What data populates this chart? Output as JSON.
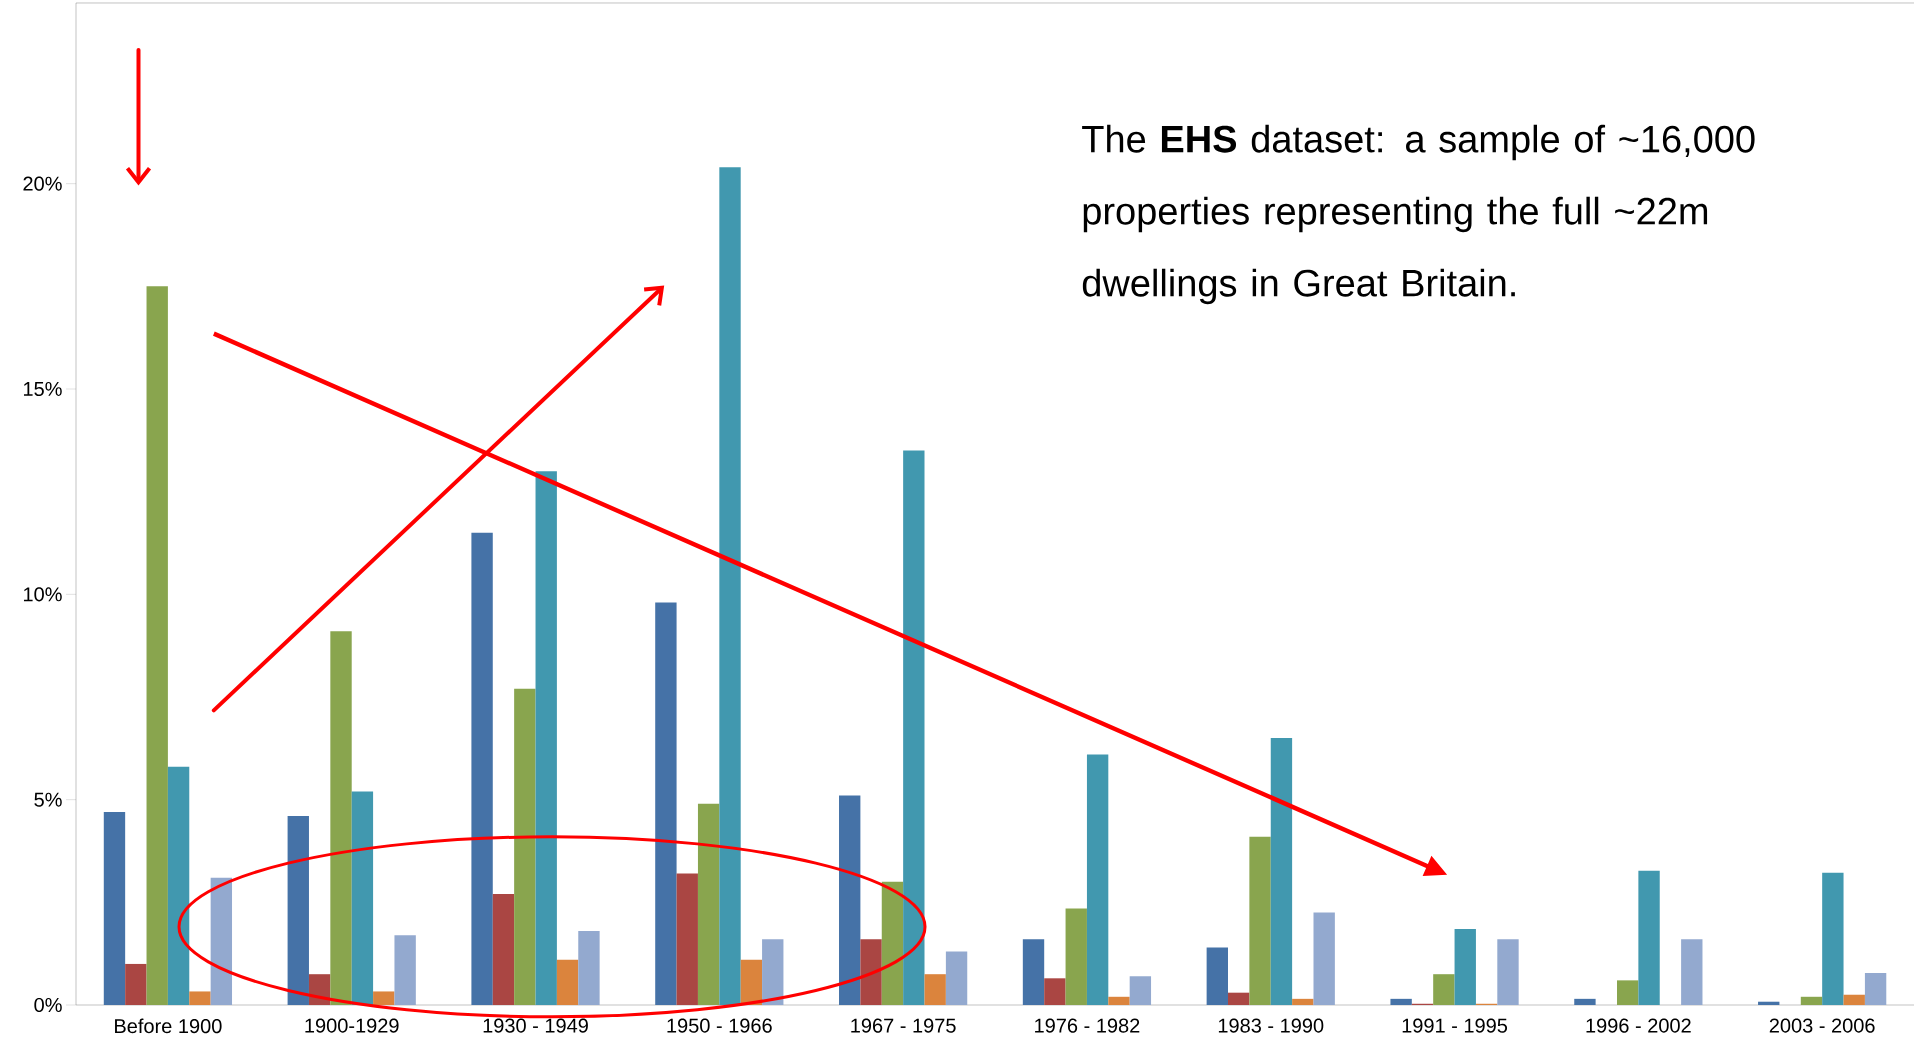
{
  "chart_data": {
    "type": "bar",
    "categories": [
      "Before 1900",
      "1900-1929",
      "1930 - 1949",
      "1950 - 1966",
      "1967 - 1975",
      "1976 - 1982",
      "1983 - 1990",
      "1991 - 1995",
      "1996 - 2002",
      "2003 - 2006"
    ],
    "series": [
      {
        "color": "#4572a7",
        "values": [
          4.7,
          4.6,
          11.5,
          9.8,
          5.1,
          1.6,
          1.4,
          0.15,
          0.15,
          0.08
        ]
      },
      {
        "color": "#aa4643",
        "values": [
          1.0,
          0.75,
          2.7,
          3.2,
          1.6,
          0.65,
          0.3,
          0.03,
          0,
          0
        ]
      },
      {
        "color": "#89a54e",
        "values": [
          17.5,
          9.1,
          7.7,
          4.9,
          3.0,
          2.35,
          4.1,
          0.75,
          0.6,
          0.2
        ]
      },
      {
        "color": "#4198af",
        "values": [
          5.8,
          5.2,
          13.0,
          20.4,
          13.5,
          6.1,
          6.5,
          1.85,
          3.27,
          3.22
        ]
      },
      {
        "color": "#db843d",
        "values": [
          0.33,
          0.33,
          1.1,
          1.1,
          0.75,
          0.2,
          0.15,
          0.03,
          0,
          0.25
        ]
      },
      {
        "color": "#93a9cf",
        "values": [
          3.1,
          1.7,
          1.8,
          1.6,
          1.3,
          0.7,
          2.25,
          1.6,
          1.6,
          0.78
        ]
      }
    ],
    "ylim": [
      0,
      24.4
    ],
    "yticks": [
      {
        "value": 0,
        "label": "0%"
      },
      {
        "value": 5,
        "label": "5%"
      },
      {
        "value": 10,
        "label": "10%"
      },
      {
        "value": 15,
        "label": "15%"
      },
      {
        "value": 20,
        "label": "20%"
      }
    ],
    "annotations": [
      "The **EHS** dataset: a sample of ~16,000 properties representing the full ~22m dwellings in Great Britain."
    ]
  }
}
